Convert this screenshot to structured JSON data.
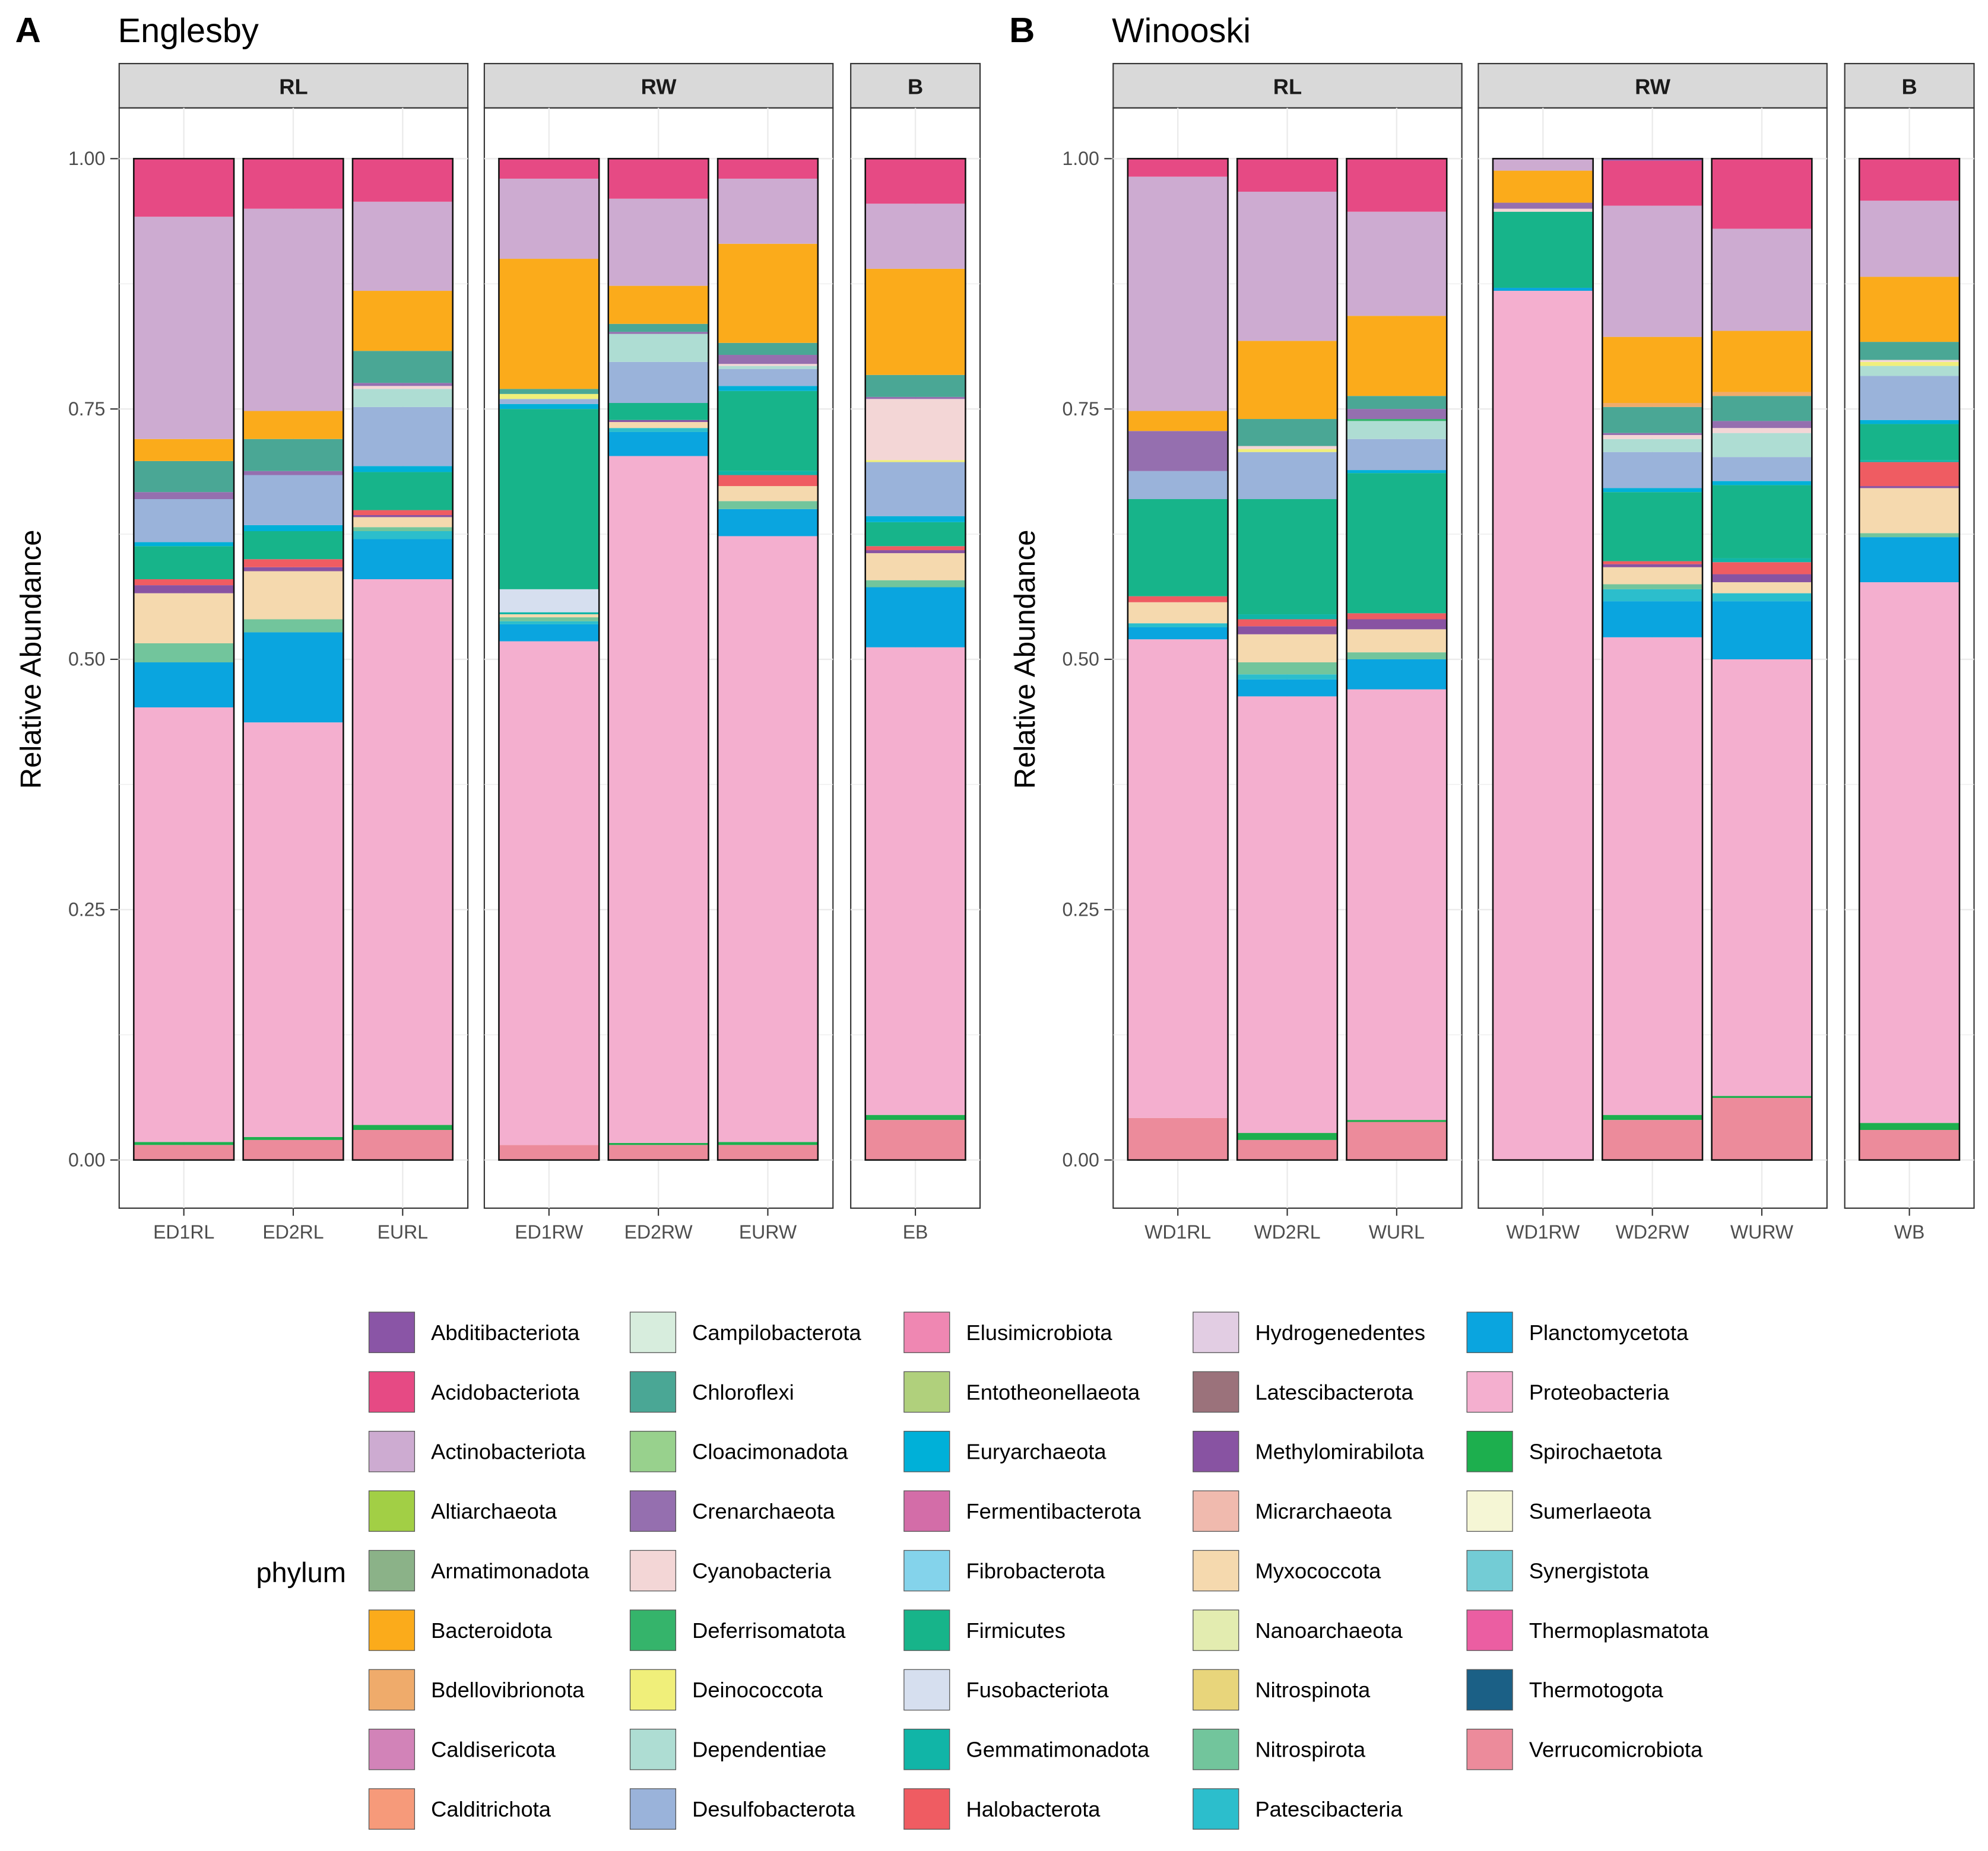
{
  "legend": {
    "title": "phylum",
    "items": [
      {
        "name": "Abditibacteriota",
        "color": "#8A55A6"
      },
      {
        "name": "Acidobacteriota",
        "color": "#E64A84"
      },
      {
        "name": "Actinobacteriota",
        "color": "#CDABD1"
      },
      {
        "name": "Altiarchaeota",
        "color": "#A2CF45"
      },
      {
        "name": "Armatimonadota",
        "color": "#8BB288"
      },
      {
        "name": "Bacteroidota",
        "color": "#FBAB1B"
      },
      {
        "name": "Bdellovibrionota",
        "color": "#EFAB6B"
      },
      {
        "name": "Caldisericota",
        "color": "#D283B8"
      },
      {
        "name": "Calditrichota",
        "color": "#F69A7A"
      },
      {
        "name": "Campilobacterota",
        "color": "#D7EDDD"
      },
      {
        "name": "Chloroflexi",
        "color": "#4AA795"
      },
      {
        "name": "Cloacimonadota",
        "color": "#98D18D"
      },
      {
        "name": "Crenarchaeota",
        "color": "#956FAF"
      },
      {
        "name": "Cyanobacteria",
        "color": "#F3D6D6"
      },
      {
        "name": "Deferrisomatota",
        "color": "#35B46B"
      },
      {
        "name": "Deinococcota",
        "color": "#F0EF7A"
      },
      {
        "name": "Dependentiae",
        "color": "#AEDDD3"
      },
      {
        "name": "Desulfobacterota",
        "color": "#9AB3DA"
      },
      {
        "name": "Elusimicrobiota",
        "color": "#EF87B2"
      },
      {
        "name": "Entotheonellaeota",
        "color": "#B0D07C"
      },
      {
        "name": "Euryarchaeota",
        "color": "#00B0D8"
      },
      {
        "name": "Fermentibacterota",
        "color": "#D36DA8"
      },
      {
        "name": "Fibrobacterota",
        "color": "#84D3EB"
      },
      {
        "name": "Firmicutes",
        "color": "#17B48A"
      },
      {
        "name": "Fusobacteriota",
        "color": "#D6DFEF"
      },
      {
        "name": "Gemmatimonadota",
        "color": "#11B5A7"
      },
      {
        "name": "Halobacterota",
        "color": "#EF5C62"
      },
      {
        "name": "Hydrogenedentes",
        "color": "#E2CDE3"
      },
      {
        "name": "Latescibacterota",
        "color": "#9B727B"
      },
      {
        "name": "Methylomirabilota",
        "color": "#8853A2"
      },
      {
        "name": "Micrarchaeota",
        "color": "#F0BAAE"
      },
      {
        "name": "Myxococcota",
        "color": "#F5D9AE"
      },
      {
        "name": "Nanoarchaeota",
        "color": "#E3ECB0"
      },
      {
        "name": "Nitrospinota",
        "color": "#E8D57B"
      },
      {
        "name": "Nitrospirota",
        "color": "#72C59C"
      },
      {
        "name": "Patescibacteria",
        "color": "#2CBECC"
      },
      {
        "name": "Planctomycetota",
        "color": "#0AA5DF"
      },
      {
        "name": "Proteobacteria",
        "color": "#F4AFCF"
      },
      {
        "name": "Spirochaetota",
        "color": "#1DAF4E"
      },
      {
        "name": "Sumerlaeota",
        "color": "#F5F6D5"
      },
      {
        "name": "Synergistota",
        "color": "#73CCD5"
      },
      {
        "name": "Thermoplasmatota",
        "color": "#EB5EA2"
      },
      {
        "name": "Thermotogota",
        "color": "#1B6086"
      },
      {
        "name": "Verrucomicrobiota",
        "color": "#EC8B9B"
      }
    ]
  },
  "chart_data": [
    {
      "type": "bar",
      "stacked": true,
      "panel_label": "A",
      "title": "Englesby",
      "ylabel": "Relative Abundance",
      "ylim": [
        0,
        1
      ],
      "yticks": [
        "0.00",
        "0.25",
        "0.50",
        "0.75",
        "1.00"
      ],
      "grid": true,
      "facets": [
        {
          "strip": "RL",
          "samples": [
            {
              "name": "ED1RL",
              "segments": {
                "Verrucomicrobiota": 0.015,
                "Spirochaetota": 0.003,
                "Proteobacteria": 0.434,
                "Planctomycetota": 0.045,
                "Nitrospirota": 0.019,
                "Myxococcota": 0.05,
                "Methylomirabilota": 0.008,
                "Halobacterota": 0.006,
                "Firmicutes": 0.033,
                "Euryarchaeota": 0.004,
                "Desulfobacterota": 0.043,
                "Crenarchaeota": 0.007,
                "Chloroflexi": 0.031,
                "Bacteroidota": 0.022,
                "Actinobacteriota": 0.222,
                "Acidobacteriota": 0.058
              }
            },
            {
              "name": "ED2RL",
              "segments": {
                "Verrucomicrobiota": 0.02,
                "Spirochaetota": 0.003,
                "Proteobacteria": 0.414,
                "Planctomycetota": 0.09,
                "Nitrospirota": 0.013,
                "Myxococcota": 0.048,
                "Methylomirabilota": 0.004,
                "Halobacterota": 0.008,
                "Firmicutes": 0.028,
                "Euryarchaeota": 0.006,
                "Desulfobacterota": 0.05,
                "Crenarchaeota": 0.004,
                "Chloroflexi": 0.032,
                "Bacteroidota": 0.028,
                "Actinobacteriota": 0.202,
                "Acidobacteriota": 0.05
              }
            },
            {
              "name": "EURL",
              "segments": {
                "Verrucomicrobiota": 0.03,
                "Spirochaetota": 0.005,
                "Proteobacteria": 0.545,
                "Planctomycetota": 0.04,
                "Patescibacteria": 0.008,
                "Nitrospirota": 0.004,
                "Myxococcota": 0.01,
                "Methylomirabilota": 0.002,
                "Halobacterota": 0.005,
                "Firmicutes": 0.038,
                "Euryarchaeota": 0.006,
                "Desulfobacterota": 0.059,
                "Dependentiae": 0.018,
                "Crenarchaeota": 0.003,
                "Chloroflexi": 0.032,
                "Cyanobacteria": 0.003,
                "Bacteroidota": 0.06,
                "Actinobacteriota": 0.089,
                "Acidobacteriota": 0.043
              }
            }
          ]
        },
        {
          "strip": "RW",
          "samples": [
            {
              "name": "ED1RW",
              "segments": {
                "Verrucomicrobiota": 0.015,
                "Proteobacteria": 0.503,
                "Planctomycetota": 0.017,
                "Patescibacteria": 0.003,
                "Nitrospirota": 0.004,
                "Myxococcota": 0.003,
                "Gemmatimonadota": 0.002,
                "Fusobacteriota": 0.023,
                "Firmicutes": 0.18,
                "Euryarchaeota": 0.005,
                "Desulfobacterota": 0.005,
                "Deinococcota": 0.005,
                "Chloroflexi": 0.005,
                "Bacteroidota": 0.13,
                "Actinobacteriota": 0.08,
                "Acidobacteriota": 0.02
              }
            },
            {
              "name": "ED2RW",
              "segments": {
                "Verrucomicrobiota": 0.015,
                "Spirochaetota": 0.002,
                "Proteobacteria": 0.686,
                "Planctomycetota": 0.024,
                "Patescibacteria": 0.004,
                "Myxococcota": 0.006,
                "Methylomirabilota": 0.002,
                "Firmicutes": 0.017,
                "Desulfobacterota": 0.041,
                "Dependentiae": 0.028,
                "Crenarchaeota": 0.002,
                "Chloroflexi": 0.008,
                "Bacteroidota": 0.038,
                "Actinobacteriota": 0.087,
                "Acidobacteriota": 0.04
              }
            },
            {
              "name": "EURW",
              "segments": {
                "Verrucomicrobiota": 0.015,
                "Spirochaetota": 0.003,
                "Proteobacteria": 0.605,
                "Planctomycetota": 0.027,
                "Nitrospirota": 0.008,
                "Myxococcota": 0.015,
                "Halobacterota": 0.011,
                "Gemmatimonadota": 0.004,
                "Firmicutes": 0.08,
                "Euryarchaeota": 0.005,
                "Desulfobacterota": 0.017,
                "Dependentiae": 0.003,
                "Crenarchaeota": 0.009,
                "Chloroflexi": 0.012,
                "Cyanobacteria": 0.002,
                "Bacteroidota": 0.099,
                "Actinobacteriota": 0.065,
                "Acidobacteriota": 0.02
              }
            }
          ]
        },
        {
          "strip": "B",
          "samples": [
            {
              "name": "EB",
              "segments": {
                "Verrucomicrobiota": 0.04,
                "Spirochaetota": 0.005,
                "Proteobacteria": 0.467,
                "Planctomycetota": 0.06,
                "Nitrospirota": 0.007,
                "Myxococcota": 0.027,
                "Methylomirabilota": 0.003,
                "Halobacterota": 0.004,
                "Firmicutes": 0.024,
                "Euryarchaeota": 0.006,
                "Desulfobacterota": 0.054,
                "Deinococcota": 0.002,
                "Cyanobacteria": 0.061,
                "Crenarchaeota": 0.002,
                "Chloroflexi": 0.022,
                "Bacteroidota": 0.106,
                "Actinobacteriota": 0.065,
                "Acidobacteriota": 0.045
              }
            }
          ]
        }
      ]
    },
    {
      "type": "bar",
      "stacked": true,
      "panel_label": "B",
      "title": "Winooski",
      "ylabel": "Relative Abundance",
      "ylim": [
        0,
        1
      ],
      "yticks": [
        "0.00",
        "0.25",
        "0.50",
        "0.75",
        "1.00"
      ],
      "grid": true,
      "facets": [
        {
          "strip": "RL",
          "samples": [
            {
              "name": "WD1RL",
              "segments": {
                "Verrucomicrobiota": 0.042,
                "Proteobacteria": 0.478,
                "Planctomycetota": 0.012,
                "Patescibacteria": 0.004,
                "Myxococcota": 0.021,
                "Halobacterota": 0.006,
                "Firmicutes": 0.097,
                "Desulfobacterota": 0.028,
                "Crenarchaeota": 0.04,
                "Bacteroidota": 0.02,
                "Actinobacteriota": 0.234,
                "Acidobacteriota": 0.018
              }
            },
            {
              "name": "WD2RL",
              "segments": {
                "Verrucomicrobiota": 0.02,
                "Spirochaetota": 0.007,
                "Proteobacteria": 0.436,
                "Planctomycetota": 0.017,
                "Patescibacteria": 0.005,
                "Nitrospirota": 0.012,
                "Myxococcota": 0.028,
                "Methylomirabilota": 0.008,
                "Halobacterota": 0.007,
                "Gemmatimonadota": 0.005,
                "Firmicutes": 0.115,
                "Desulfobacterota": 0.047,
                "Deinococcota": 0.003,
                "Cyanobacteria": 0.003,
                "Chloroflexi": 0.027,
                "Bacteroidota": 0.078,
                "Actinobacteriota": 0.149,
                "Acidobacteriota": 0.033
              }
            },
            {
              "name": "WURL",
              "segments": {
                "Verrucomicrobiota": 0.038,
                "Spirochaetota": 0.002,
                "Proteobacteria": 0.43,
                "Planctomycetota": 0.03,
                "Nitrospirota": 0.007,
                "Myxococcota": 0.023,
                "Methylomirabilota": 0.01,
                "Halobacterota": 0.006,
                "Firmicutes": 0.14,
                "Euryarchaeota": 0.003,
                "Desulfobacterota": 0.031,
                "Dependentiae": 0.018,
                "Deferrisomatota": 0.002,
                "Crenarchaeota": 0.01,
                "Chloroflexi": 0.013,
                "Bacteroidota": 0.08,
                "Actinobacteriota": 0.104,
                "Acidobacteriota": 0.053
              }
            }
          ]
        },
        {
          "strip": "RW",
          "samples": [
            {
              "name": "WD1RW",
              "segments": {
                "Proteobacteria": 0.868,
                "Planctomycetota": 0.003,
                "Firmicutes": 0.076,
                "Cyanobacteria": 0.003,
                "Crenarchaeota": 0.006,
                "Bacteroidota": 0.032,
                "Actinobacteriota": 0.012
              }
            },
            {
              "name": "WD2RW",
              "segments": {
                "Verrucomicrobiota": 0.04,
                "Spirochaetota": 0.005,
                "Proteobacteria": 0.477,
                "Planctomycetota": 0.036,
                "Patescibacteria": 0.012,
                "Nitrospirota": 0.005,
                "Myxococcota": 0.017,
                "Methylomirabilota": 0.003,
                "Halobacterota": 0.003,
                "Firmicutes": 0.069,
                "Euryarchaeota": 0.004,
                "Desulfobacterota": 0.036,
                "Dependentiae": 0.013,
                "Cyanobacteria": 0.004,
                "Crenarchaeota": 0.002,
                "Chloroflexi": 0.026,
                "Bdellovibrionota": 0.004,
                "Bacteroidota": 0.066,
                "Actinobacteriota": 0.131,
                "Acidobacteriota": 0.045,
                "Abditibacteriota": 0.002
              }
            },
            {
              "name": "WURW",
              "segments": {
                "Verrucomicrobiota": 0.062,
                "Spirochaetota": 0.002,
                "Proteobacteria": 0.436,
                "Planctomycetota": 0.058,
                "Patescibacteria": 0.008,
                "Myxococcota": 0.011,
                "Methylomirabilota": 0.008,
                "Halobacterota": 0.012,
                "Gemmatimonadota": 0.004,
                "Firmicutes": 0.073,
                "Euryarchaeota": 0.004,
                "Desulfobacterota": 0.024,
                "Dependentiae": 0.024,
                "Cyanobacteria": 0.005,
                "Crenarchaeota": 0.007,
                "Chloroflexi": 0.025,
                "Bdellovibrionota": 0.004,
                "Bacteroidota": 0.061,
                "Actinobacteriota": 0.102,
                "Acidobacteriota": 0.07
              }
            }
          ]
        },
        {
          "strip": "B",
          "samples": [
            {
              "name": "WB",
              "segments": {
                "Verrucomicrobiota": 0.03,
                "Spirochaetota": 0.007,
                "Proteobacteria": 0.54,
                "Planctomycetota": 0.045,
                "Nitrospirota": 0.004,
                "Myxococcota": 0.045,
                "Methylomirabilota": 0.002,
                "Halobacterota": 0.024,
                "Gemmatimonadota": 0.002,
                "Firmicutes": 0.036,
                "Euryarchaeota": 0.004,
                "Desulfobacterota": 0.044,
                "Dependentiae": 0.01,
                "Deinococcota": 0.004,
                "Cyanobacteria": 0.002,
                "Chloroflexi": 0.018,
                "Bacteroidota": 0.065,
                "Actinobacteriota": 0.076,
                "Acidobacteriota": 0.042
              }
            }
          ]
        }
      ]
    }
  ]
}
